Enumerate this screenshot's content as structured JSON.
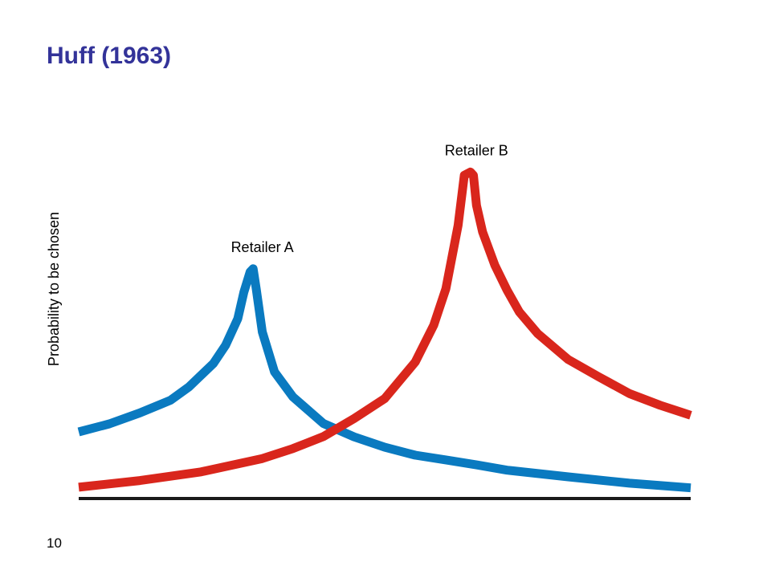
{
  "title": "Huff (1963)",
  "page_number": "10",
  "colors": {
    "title": "#333399",
    "retailer_a": "#0a7ac0",
    "retailer_b": "#d9261c",
    "axis": "#1a1a1a"
  },
  "chart_data": {
    "type": "line",
    "title": "",
    "xlabel": "",
    "ylabel": "Probability to be chosen",
    "grid": false,
    "legend": "none",
    "xlim": [
      0,
      100
    ],
    "ylim": [
      0,
      100
    ],
    "series": [
      {
        "name": "Retailer A",
        "color": "#0a7ac0",
        "x": [
          0,
          5,
          10,
          15,
          18,
          22,
          24,
          26,
          27,
          28,
          28.5,
          29,
          30,
          32,
          35,
          40,
          45,
          50,
          55,
          60,
          65,
          70,
          80,
          90,
          100
        ],
        "y": [
          20,
          22.4,
          25.7,
          29.5,
          33.5,
          40.5,
          46,
          54,
          62,
          68,
          69,
          63,
          50,
          38,
          30.5,
          22.5,
          18.5,
          15.4,
          13,
          11.6,
          10.1,
          8.5,
          6.5,
          4.6,
          3.2
        ]
      },
      {
        "name": "Retailer B",
        "color": "#d9261c",
        "x": [
          0,
          10,
          20,
          30,
          35,
          40,
          45,
          50,
          55,
          58,
          60,
          62,
          63,
          64,
          64.5,
          65,
          66,
          68,
          70,
          72,
          75,
          80,
          85,
          90,
          95,
          100
        ],
        "y": [
          3.4,
          5.4,
          8,
          12,
          15,
          18.6,
          24,
          30,
          41,
          52,
          63,
          82,
          97,
          98,
          97,
          88,
          80,
          70,
          62.5,
          56,
          49.5,
          41.7,
          36.5,
          31.5,
          28,
          25
        ]
      }
    ],
    "annotations": [
      {
        "text": "Retailer A",
        "x": 30,
        "y": 74
      },
      {
        "text": "Retailer B",
        "x": 65,
        "y": 103
      }
    ]
  }
}
